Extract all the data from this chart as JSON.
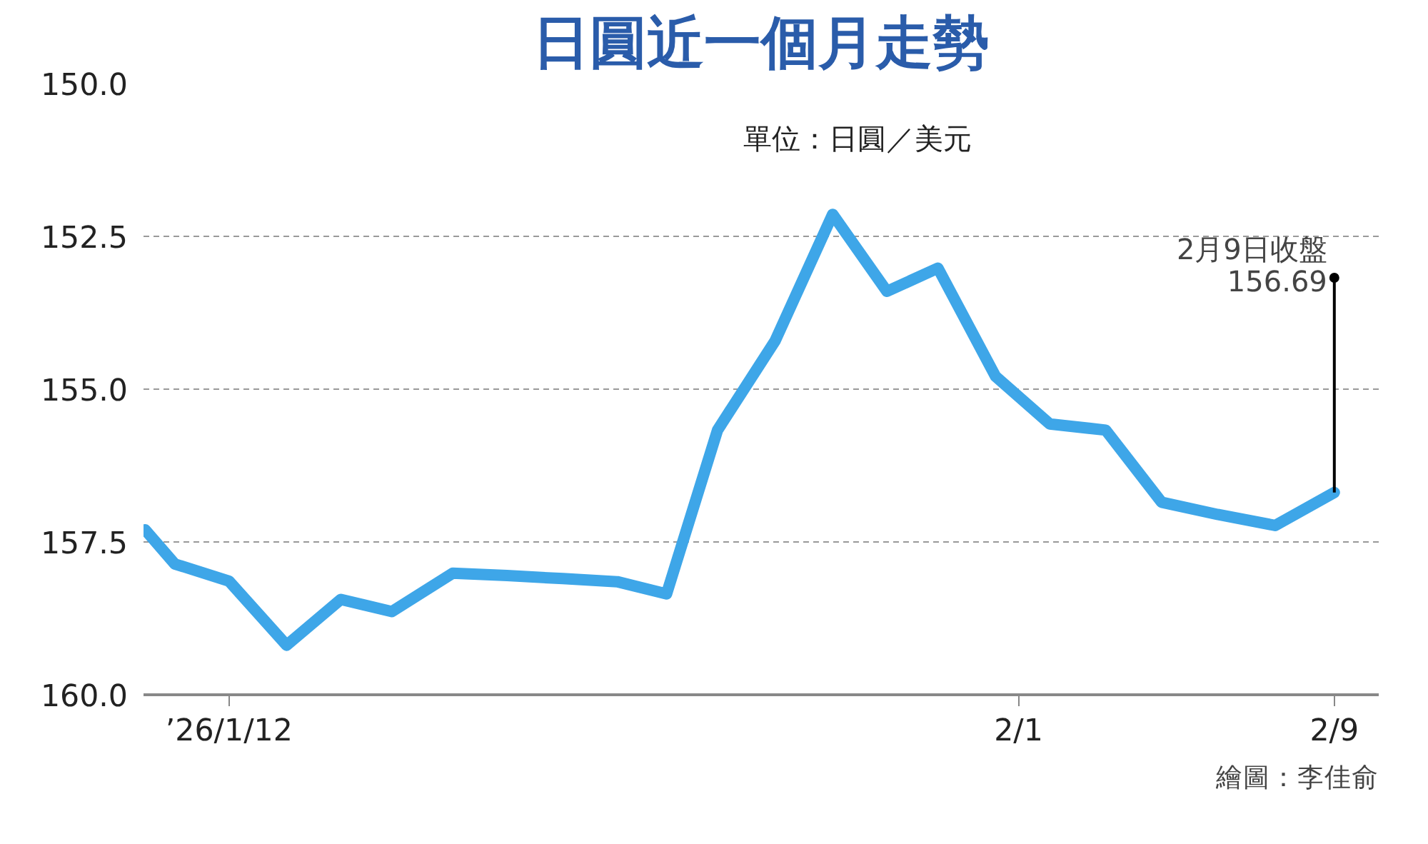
{
  "chart_data": {
    "type": "line",
    "title": "日圓近一個月走勢",
    "subtitle": "單位：日圓／美元",
    "x": [
      "2026-01-09T21:00",
      "2026-01-10T15:00",
      "2026-01-12T00:00",
      "2026-01-13T11:00",
      "2026-01-14T20:00",
      "2026-01-16T03:00",
      "2026-01-17T16:00",
      "2026-01-19T01:00",
      "2026-01-20T11:00",
      "2026-01-21T20:00",
      "2026-01-23T02:00",
      "2026-01-24T09:00",
      "2026-01-25T20:00",
      "2026-01-27T07:00",
      "2026-01-28T16:00",
      "2026-01-29T23:00",
      "2026-01-31T10:00",
      "2026-02-01T19:00",
      "2026-02-03T05:00",
      "2026-02-04T15:00",
      "2026-02-06T01:00",
      "2026-02-07T12:00",
      "2026-02-09T00:00"
    ],
    "series": [
      {
        "color": "#3ea6e8",
        "values": [
          157.3,
          157.86,
          158.14,
          159.19,
          158.44,
          158.64,
          158.01,
          158.05,
          158.1,
          158.15,
          158.35,
          155.67,
          154.21,
          152.14,
          153.4,
          153.02,
          154.79,
          155.57,
          155.67,
          156.85,
          157.05,
          157.23,
          156.69
        ]
      }
    ],
    "xlim": [
      "2026-01-09T20:00",
      "2026-02-10T03:00"
    ],
    "xticks": [
      {
        "value": "2026-01-12",
        "label": "’26/1/12"
      },
      {
        "value": "2026-02-01",
        "label": "2/1"
      },
      {
        "value": "2026-02-09",
        "label": "2/9"
      }
    ],
    "ylim": [
      160,
      150
    ],
    "yticks": [
      {
        "value": 150,
        "label": "150.0"
      },
      {
        "value": 152.5,
        "label": "152.5"
      },
      {
        "value": 155,
        "label": "155.0"
      },
      {
        "value": 157.5,
        "label": "157.5"
      },
      {
        "value": 160,
        "label": "160.0"
      }
    ],
    "grid": "y",
    "line_style": "solid",
    "annotations": [
      {
        "text": "2月9日收盤\n156.69",
        "x": "2026-02-09",
        "y": 156.69
      },
      "繪圖：李佳俞"
    ]
  }
}
